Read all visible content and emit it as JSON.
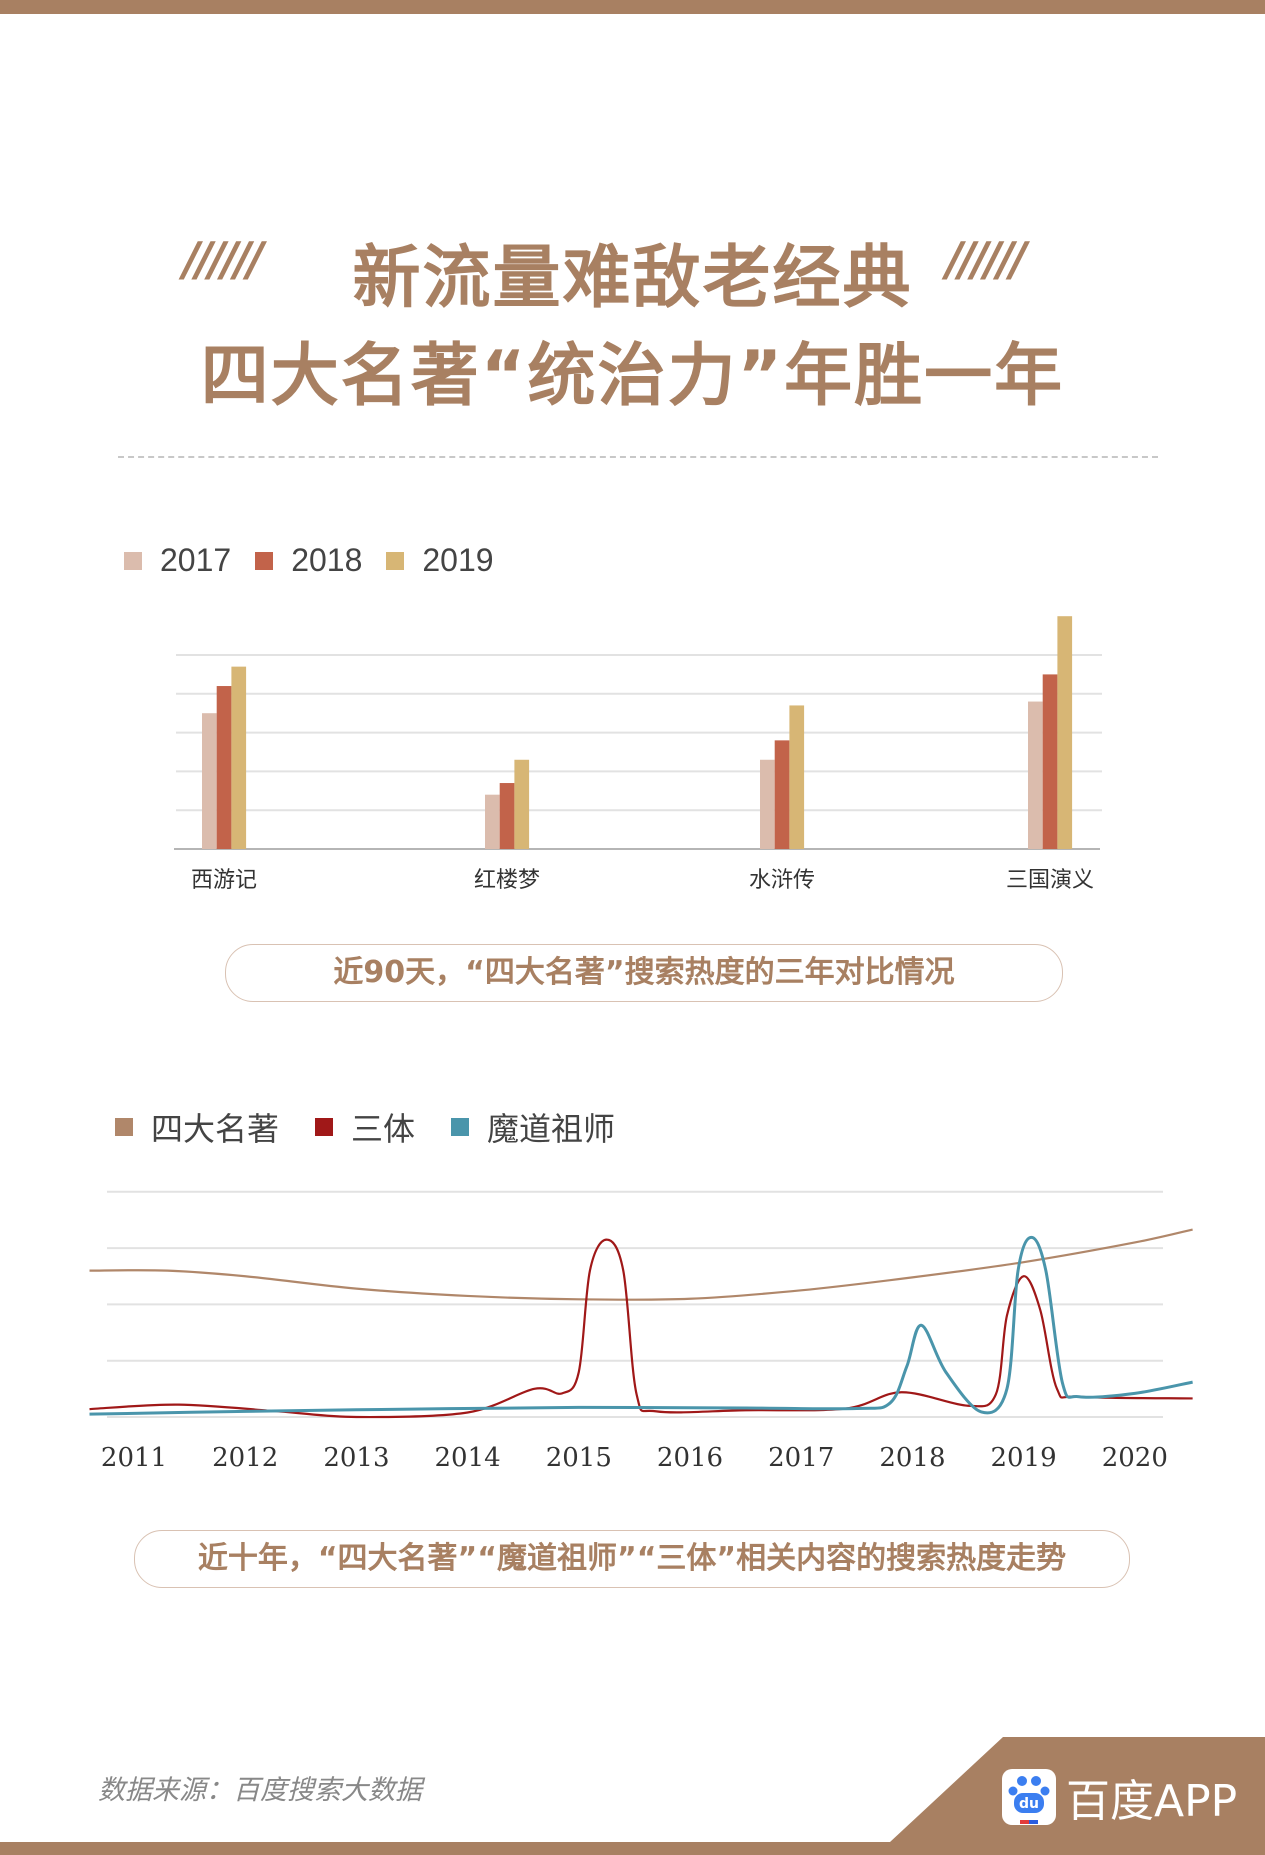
{
  "header": {
    "title_line1": "新流量难敌老经典",
    "title_line2": "四大名著“统治力”年胜一年",
    "decoration_left": "//////",
    "decoration_right": "//////"
  },
  "chart_data": [
    {
      "type": "bar",
      "categories": [
        "西游记",
        "红楼梦",
        "水浒传",
        "三国演义"
      ],
      "series": [
        {
          "name": "2017",
          "values": [
            3.5,
            1.4,
            2.3,
            3.8
          ],
          "color": "#dbbcad"
        },
        {
          "name": "2018",
          "values": [
            4.2,
            1.7,
            2.8,
            4.5
          ],
          "color": "#c2634a"
        },
        {
          "name": "2019",
          "values": [
            4.7,
            2.3,
            3.7,
            6.0
          ],
          "color": "#d7b675"
        }
      ],
      "ylim": [
        0,
        6
      ],
      "grid": true,
      "y_tick_labels": false,
      "legend": "top-left",
      "caption": "近90天，“四大名著”搜索热度的三年对比情况"
    },
    {
      "type": "line",
      "x_ticks": [
        "2011",
        "2012",
        "2013",
        "2014",
        "2015",
        "2016",
        "2017",
        "2018",
        "2019",
        "2020"
      ],
      "xlim": [
        2010.6,
        2020.52
      ],
      "ylim": [
        0,
        4
      ],
      "grid": true,
      "y_tick_labels": false,
      "legend": "top-left",
      "series": [
        {
          "name": "四大名著",
          "color": "#b0876a",
          "points": [
            [
              2010.6,
              2.6
            ],
            [
              2011.3,
              2.6
            ],
            [
              2012,
              2.5
            ],
            [
              2013,
              2.28
            ],
            [
              2014,
              2.15
            ],
            [
              2015,
              2.09
            ],
            [
              2016,
              2.1
            ],
            [
              2017,
              2.25
            ],
            [
              2018,
              2.48
            ],
            [
              2019,
              2.75
            ],
            [
              2020,
              3.1
            ],
            [
              2020.52,
              3.33
            ]
          ]
        },
        {
          "name": "三体",
          "color": "#a01818",
          "points": [
            [
              2010.6,
              0.14
            ],
            [
              2011.4,
              0.22
            ],
            [
              2012.3,
              0.1
            ],
            [
              2013,
              0.0
            ],
            [
              2014,
              0.08
            ],
            [
              2014.6,
              0.5
            ],
            [
              2014.85,
              0.42
            ],
            [
              2015.0,
              0.8
            ],
            [
              2015.1,
              2.6
            ],
            [
              2015.25,
              3.15
            ],
            [
              2015.4,
              2.6
            ],
            [
              2015.52,
              0.4
            ],
            [
              2015.7,
              0.1
            ],
            [
              2016.5,
              0.12
            ],
            [
              2017.4,
              0.15
            ],
            [
              2017.9,
              0.44
            ],
            [
              2018.5,
              0.2
            ],
            [
              2018.75,
              0.4
            ],
            [
              2018.85,
              1.8
            ],
            [
              2019.0,
              2.5
            ],
            [
              2019.15,
              1.9
            ],
            [
              2019.3,
              0.5
            ],
            [
              2019.5,
              0.36
            ],
            [
              2020.52,
              0.33
            ]
          ]
        },
        {
          "name": "魔道祖师",
          "color": "#4a95ab",
          "points": [
            [
              2010.6,
              0.05
            ],
            [
              2012,
              0.1
            ],
            [
              2013.5,
              0.14
            ],
            [
              2015,
              0.17
            ],
            [
              2016.5,
              0.16
            ],
            [
              2017.5,
              0.15
            ],
            [
              2017.8,
              0.25
            ],
            [
              2017.95,
              0.9
            ],
            [
              2018.08,
              1.63
            ],
            [
              2018.3,
              0.8
            ],
            [
              2018.62,
              0.09
            ],
            [
              2018.85,
              0.5
            ],
            [
              2018.95,
              2.6
            ],
            [
              2019.07,
              3.19
            ],
            [
              2019.2,
              2.6
            ],
            [
              2019.35,
              0.6
            ],
            [
              2019.5,
              0.36
            ],
            [
              2020,
              0.42
            ],
            [
              2020.52,
              0.62
            ]
          ]
        }
      ],
      "caption": "近十年，“四大名著”“魔道祖师”“三体”相关内容的搜索热度走势"
    }
  ],
  "footer": {
    "source": "数据来源：百度搜索大数据",
    "logo_text": "百度APP",
    "logo_icon_text": "du"
  }
}
